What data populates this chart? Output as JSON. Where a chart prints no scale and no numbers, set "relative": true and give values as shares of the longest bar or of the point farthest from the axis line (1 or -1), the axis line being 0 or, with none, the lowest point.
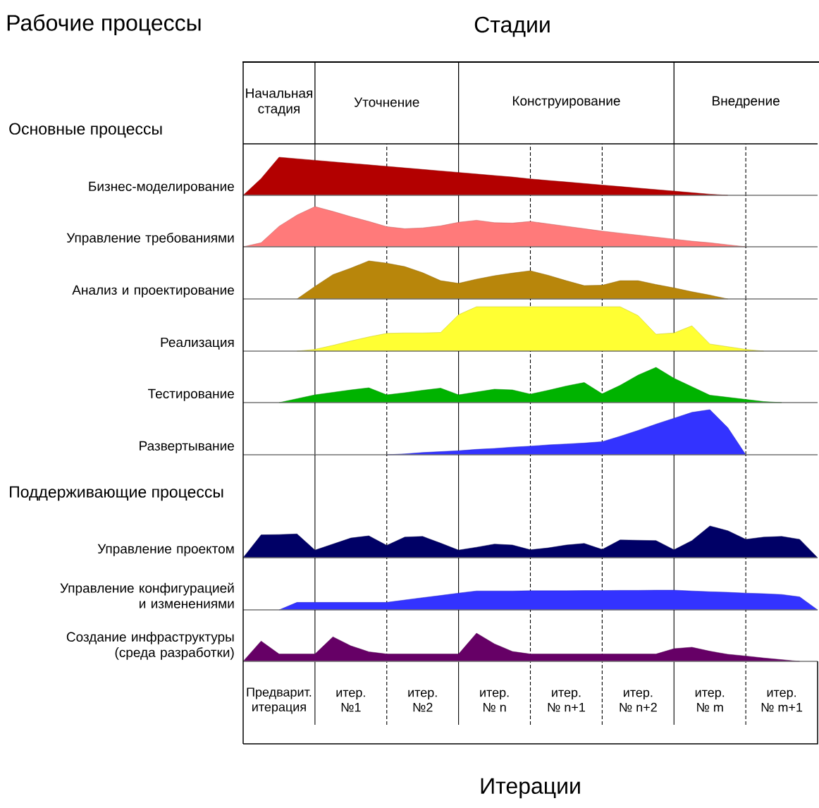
{
  "chart_data": [
    {
      "type": "area",
      "relative": true,
      "title": "Стадии",
      "annotations": [
        "Рабочие процессы",
        "Основные процессы",
        "Поддерживающие процессы",
        "Начальная стадия",
        "Уточнение",
        "Конструирование",
        "Внедрение"
      ],
      "ylabel": "Бизнес-моделирование",
      "grid": "x",
      "tick_labels": false,
      "categories": [
        null,
        null,
        null,
        null,
        null,
        null,
        null,
        null,
        null,
        null,
        null,
        null,
        null,
        null,
        null,
        null,
        null,
        null,
        null,
        null,
        null,
        null,
        null,
        null,
        null,
        null,
        null,
        null,
        null,
        null,
        null,
        null,
        null
      ],
      "series": [
        {
          "color": "#b30000",
          "values": [
            0,
            0.44,
            1,
            0.96,
            0.92,
            0.88,
            0.84,
            0.8,
            0.76,
            0.72,
            0.68,
            0.64,
            0.6,
            0.56,
            0.52,
            0.48,
            0.43,
            0.39,
            0.35,
            0.31,
            0.27,
            0.23,
            0.19,
            0.15,
            0.11,
            0.07,
            0.03,
            0,
            null,
            null,
            null,
            null,
            null
          ]
        }
      ]
    },
    {
      "type": "area",
      "relative": true,
      "ylabel": "Управление требованиями",
      "grid": "x",
      "tick_labels": false,
      "categories": [
        null,
        null,
        null,
        null,
        null,
        null,
        null,
        null,
        null,
        null,
        null,
        null,
        null,
        null,
        null,
        null,
        null,
        null,
        null,
        null,
        null,
        null,
        null,
        null,
        null,
        null,
        null,
        null,
        null,
        null,
        null,
        null,
        null
      ],
      "series": [
        {
          "color": "#ff7a7a",
          "values": [
            0,
            0.1,
            0.51,
            0.79,
            1,
            0.88,
            0.75,
            0.63,
            0.5,
            0.45,
            0.47,
            0.52,
            0.61,
            0.66,
            0.6,
            0.59,
            0.63,
            0.57,
            0.51,
            0.45,
            0.39,
            0.34,
            0.29,
            0.24,
            0.19,
            0.14,
            0.1,
            0.05,
            0,
            null,
            null,
            null,
            null
          ]
        }
      ]
    },
    {
      "type": "area",
      "relative": true,
      "ylabel": "Анализ и проектирование",
      "grid": "x",
      "tick_labels": false,
      "categories": [
        null,
        null,
        null,
        null,
        null,
        null,
        null,
        null,
        null,
        null,
        null,
        null,
        null,
        null,
        null,
        null,
        null,
        null,
        null,
        null,
        null,
        null,
        null,
        null,
        null,
        null,
        null,
        null,
        null,
        null,
        null,
        null,
        null
      ],
      "series": [
        {
          "color": "#b8860b",
          "values": [
            null,
            null,
            null,
            0,
            0.33,
            0.64,
            0.81,
            1,
            0.94,
            0.85,
            0.69,
            0.48,
            0.41,
            0.52,
            0.61,
            0.68,
            0.74,
            0.62,
            0.48,
            0.35,
            0.36,
            0.48,
            0.48,
            0.38,
            0.29,
            0.19,
            0.1,
            0,
            null,
            null,
            null,
            null,
            null
          ]
        }
      ]
    },
    {
      "type": "area",
      "relative": true,
      "ylabel": "Реализация",
      "grid": "x",
      "tick_labels": false,
      "categories": [
        null,
        null,
        null,
        null,
        null,
        null,
        null,
        null,
        null,
        null,
        null,
        null,
        null,
        null,
        null,
        null,
        null,
        null,
        null,
        null,
        null,
        null,
        null,
        null,
        null,
        null,
        null,
        null,
        null,
        null,
        null,
        null,
        null
      ],
      "series": [
        {
          "color": "#ffff33",
          "values": [
            null,
            null,
            null,
            0,
            0.04,
            0.13,
            0.23,
            0.32,
            0.4,
            0.41,
            0.41,
            0.42,
            0.82,
            1,
            1,
            1,
            1,
            1,
            1,
            1,
            1,
            1,
            0.8,
            0.38,
            0.41,
            0.57,
            0.16,
            0.1,
            0.04,
            0,
            null,
            null,
            null
          ]
        }
      ]
    },
    {
      "type": "area",
      "relative": true,
      "ylabel": "Тестирование",
      "grid": "x",
      "tick_labels": false,
      "categories": [
        null,
        null,
        null,
        null,
        null,
        null,
        null,
        null,
        null,
        null,
        null,
        null,
        null,
        null,
        null,
        null,
        null,
        null,
        null,
        null,
        null,
        null,
        null,
        null,
        null,
        null,
        null,
        null,
        null,
        null,
        null,
        null,
        null
      ],
      "series": [
        {
          "color": "#00b300",
          "values": [
            null,
            null,
            0,
            0.11,
            0.22,
            0.29,
            0.36,
            0.42,
            0.22,
            0.28,
            0.35,
            0.41,
            0.22,
            0.3,
            0.38,
            0.36,
            0.24,
            0.35,
            0.47,
            0.57,
            0.25,
            0.49,
            0.78,
            1,
            0.69,
            0.45,
            0.21,
            0.15,
            0.09,
            0.03,
            0,
            null,
            null
          ]
        }
      ]
    },
    {
      "type": "area",
      "relative": true,
      "ylabel": "Развертывание",
      "grid": "x",
      "tick_labels": false,
      "categories": [
        null,
        null,
        null,
        null,
        null,
        null,
        null,
        null,
        null,
        null,
        null,
        null,
        null,
        null,
        null,
        null,
        null,
        null,
        null,
        null,
        null,
        null,
        null,
        null,
        null,
        null,
        null,
        null,
        null,
        null,
        null,
        null,
        null
      ],
      "series": [
        {
          "color": "#3333ff",
          "values": [
            null,
            null,
            null,
            null,
            null,
            null,
            null,
            null,
            0,
            0.02,
            0.05,
            0.07,
            0.09,
            0.12,
            0.14,
            0.17,
            0.19,
            0.22,
            0.24,
            0.26,
            0.29,
            0.41,
            0.54,
            0.68,
            0.81,
            0.94,
            1,
            0.6,
            0,
            null,
            null,
            null,
            null
          ]
        }
      ]
    },
    {
      "type": "area",
      "relative": true,
      "ylabel": "Управление проектом",
      "grid": "x",
      "tick_labels": false,
      "categories": [
        null,
        null,
        null,
        null,
        null,
        null,
        null,
        null,
        null,
        null,
        null,
        null,
        null,
        null,
        null,
        null,
        null,
        null,
        null,
        null,
        null,
        null,
        null,
        null,
        null,
        null,
        null,
        null,
        null,
        null,
        null,
        null,
        null
      ],
      "series": [
        {
          "color": "#000066",
          "values": [
            0,
            0.72,
            0.73,
            0.75,
            0.24,
            0.43,
            0.62,
            0.69,
            0.39,
            0.65,
            0.67,
            0.46,
            0.24,
            0.33,
            0.43,
            0.4,
            0.25,
            0.31,
            0.4,
            0.45,
            0.26,
            0.56,
            0.55,
            0.54,
            0.25,
            0.54,
            1,
            0.85,
            0.58,
            0.65,
            0.67,
            0.58,
            0
          ]
        }
      ]
    },
    {
      "type": "area",
      "relative": true,
      "ylabel": "Управление конфигурацией и изменениями",
      "grid": "x",
      "tick_labels": false,
      "categories": [
        null,
        null,
        null,
        null,
        null,
        null,
        null,
        null,
        null,
        null,
        null,
        null,
        null,
        null,
        null,
        null,
        null,
        null,
        null,
        null,
        null,
        null,
        null,
        null,
        null,
        null,
        null,
        null,
        null,
        null,
        null,
        null,
        null
      ],
      "series": [
        {
          "color": "#3333ff",
          "values": [
            null,
            null,
            0,
            0.38,
            0.38,
            0.38,
            0.38,
            0.38,
            0.38,
            0.5,
            0.62,
            0.73,
            0.85,
            0.96,
            0.96,
            0.96,
            0.97,
            0.97,
            0.97,
            0.98,
            0.98,
            0.99,
            0.99,
            1,
            1,
            0.96,
            0.92,
            0.89,
            0.85,
            0.82,
            0.78,
            0.66,
            0
          ]
        }
      ]
    },
    {
      "type": "area",
      "relative": true,
      "ylabel": "Создание инфраструктуры (среда разработки)",
      "xlabel": "Итерации",
      "grid": "x",
      "tick_labels": "x",
      "categories": [
        null,
        null,
        "Предварит. итерация",
        null,
        null,
        null,
        "итер. №1",
        null,
        null,
        null,
        "итер. №2",
        null,
        null,
        null,
        "итер. № n",
        null,
        null,
        null,
        "итер. № n+1",
        null,
        null,
        null,
        "итер. № n+2",
        null,
        null,
        null,
        "итер. № m",
        null,
        null,
        null,
        "итер. № m+1",
        null,
        null
      ],
      "series": [
        {
          "color": "#660066",
          "values": [
            0,
            0.72,
            0.26,
            0.26,
            0.26,
            0.87,
            0.55,
            0.34,
            0.26,
            0.26,
            0.26,
            0.26,
            0.26,
            1,
            0.62,
            0.35,
            0.26,
            0.26,
            0.26,
            0.26,
            0.26,
            0.26,
            0.26,
            0.26,
            0.45,
            0.5,
            0.36,
            0.25,
            0.19,
            0.12,
            0.06,
            0,
            null
          ]
        }
      ]
    }
  ]
}
